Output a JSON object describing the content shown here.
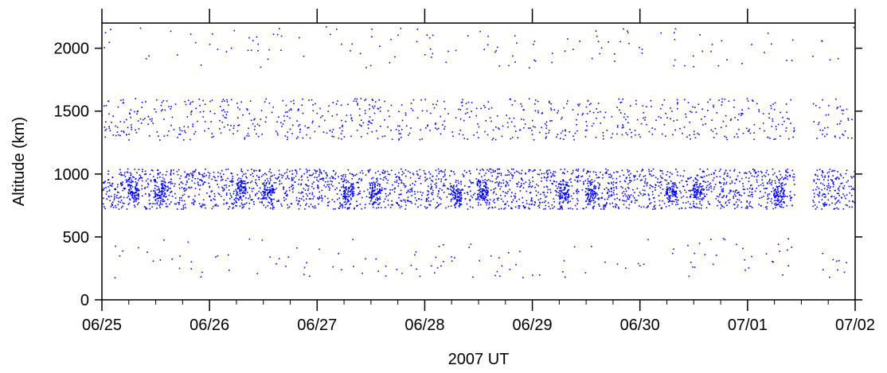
{
  "chart_data": {
    "type": "scatter",
    "title": "",
    "xlabel": "2007 UT",
    "ylabel": "Altitude (km)",
    "x_ticks": [
      "06/25",
      "06/26",
      "06/27",
      "06/28",
      "06/29",
      "06/30",
      "07/01",
      "07/02"
    ],
    "x_range": [
      "2007-06-25T00:00",
      "2007-07-02T00:00"
    ],
    "y_ticks": [
      0,
      500,
      1000,
      1500,
      2000
    ],
    "ylim": [
      0,
      2200
    ],
    "grid": false,
    "point_color": "#0000ff",
    "series": [
      {
        "bands": [
          {
            "altitude_range": [
              720,
              1040
            ],
            "density": "high"
          },
          {
            "altitude_range": [
              1270,
              1600
            ],
            "density": "medium"
          },
          {
            "altitude_range": [
              170,
              490
            ],
            "density": "low"
          },
          {
            "altitude_range": [
              1840,
              2170
            ],
            "density": "low"
          }
        ],
        "clusters": [
          {
            "x": "2007-06-25T07:00",
            "y": 860
          },
          {
            "x": "2007-06-25T13:00",
            "y": 860
          },
          {
            "x": "2007-06-26T07:00",
            "y": 880
          },
          {
            "x": "2007-06-26T13:00",
            "y": 860
          },
          {
            "x": "2007-06-27T07:00",
            "y": 870
          },
          {
            "x": "2007-06-27T13:00",
            "y": 850
          },
          {
            "x": "2007-06-28T07:00",
            "y": 840
          },
          {
            "x": "2007-06-28T13:00",
            "y": 860
          },
          {
            "x": "2007-06-29T07:00",
            "y": 850
          },
          {
            "x": "2007-06-29T13:00",
            "y": 850
          },
          {
            "x": "2007-06-30T07:00",
            "y": 860
          },
          {
            "x": "2007-06-30T13:00",
            "y": 860
          },
          {
            "x": "2007-07-01T07:00",
            "y": 850
          }
        ],
        "gap": [
          "2007-07-01T10:30",
          "2007-07-01T14:30"
        ]
      }
    ]
  }
}
